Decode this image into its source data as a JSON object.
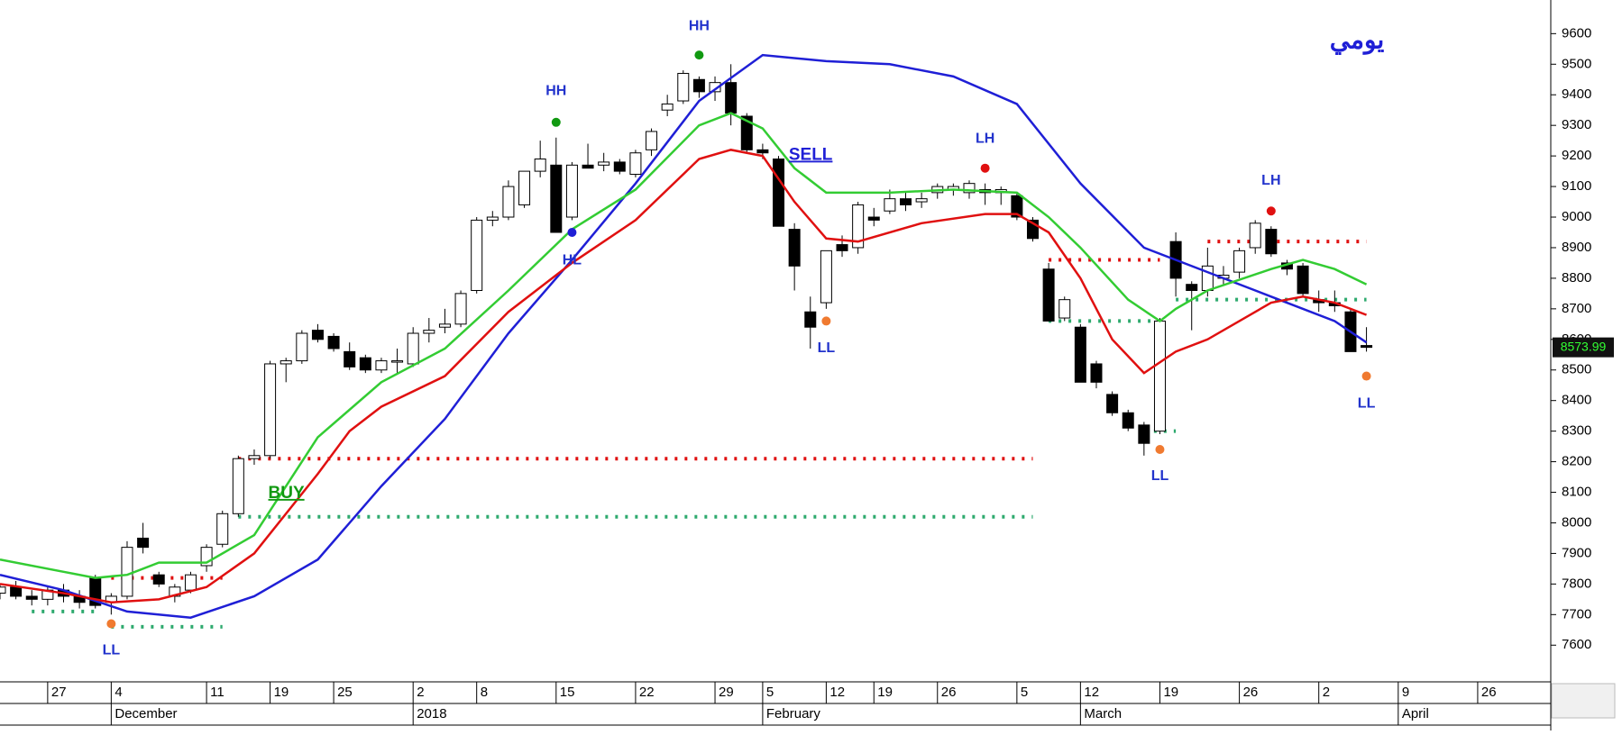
{
  "chart_data": {
    "type": "candlestick",
    "title": "يومي",
    "xlim": [
      0,
      97.6
    ],
    "ylim": [
      7480,
      9710
    ],
    "yticks": [
      7600,
      7700,
      7800,
      7900,
      8000,
      8100,
      8200,
      8300,
      8400,
      8500,
      8600,
      8700,
      8800,
      8900,
      9000,
      9100,
      9200,
      9300,
      9400,
      9500,
      9600
    ],
    "xticks": [
      {
        "value": 3,
        "label": "27"
      },
      {
        "value": 7,
        "label": "4"
      },
      {
        "value": 13,
        "label": "11"
      },
      {
        "value": 17,
        "label": "19"
      },
      {
        "value": 21,
        "label": "25"
      },
      {
        "value": 26,
        "label": "2"
      },
      {
        "value": 30,
        "label": "8"
      },
      {
        "value": 35,
        "label": "15"
      },
      {
        "value": 40,
        "label": "22"
      },
      {
        "value": 45,
        "label": "29"
      },
      {
        "value": 48,
        "label": "5"
      },
      {
        "value": 52,
        "label": "12"
      },
      {
        "value": 55,
        "label": "19"
      },
      {
        "value": 59,
        "label": "26"
      },
      {
        "value": 64,
        "label": "5"
      },
      {
        "value": 68,
        "label": "12"
      },
      {
        "value": 73,
        "label": "19"
      },
      {
        "value": 78,
        "label": "26"
      },
      {
        "value": 83,
        "label": "2"
      },
      {
        "value": 88,
        "label": "9"
      },
      {
        "value": 93,
        "label": "26"
      }
    ],
    "months": [
      {
        "value": 7,
        "label": "December"
      },
      {
        "value": 26,
        "label": "2018"
      },
      {
        "value": 48,
        "label": "February"
      },
      {
        "value": 68,
        "label": "March"
      },
      {
        "value": 88,
        "label": "April"
      }
    ],
    "candles": [
      [
        7770,
        7800,
        7750,
        7790
      ],
      [
        7790,
        7810,
        7750,
        7760
      ],
      [
        7760,
        7780,
        7730,
        7750
      ],
      [
        7750,
        7790,
        7730,
        7780
      ],
      [
        7780,
        7800,
        7740,
        7760
      ],
      [
        7760,
        7780,
        7720,
        7740
      ],
      [
        7820,
        7830,
        7720,
        7730
      ],
      [
        7740,
        7770,
        7700,
        7760
      ],
      [
        7760,
        7940,
        7750,
        7920
      ],
      [
        7950,
        8000,
        7900,
        7920
      ],
      [
        7830,
        7840,
        7790,
        7800
      ],
      [
        7760,
        7800,
        7740,
        7790
      ],
      [
        7780,
        7840,
        7770,
        7830
      ],
      [
        7860,
        7930,
        7840,
        7920
      ],
      [
        7930,
        8040,
        7920,
        8030
      ],
      [
        8030,
        8220,
        8020,
        8210
      ],
      [
        8210,
        8240,
        8190,
        8220
      ],
      [
        8220,
        8530,
        8210,
        8520
      ],
      [
        8520,
        8540,
        8460,
        8530
      ],
      [
        8530,
        8630,
        8520,
        8620
      ],
      [
        8630,
        8650,
        8590,
        8600
      ],
      [
        8610,
        8620,
        8560,
        8570
      ],
      [
        8560,
        8590,
        8500,
        8510
      ],
      [
        8540,
        8550,
        8490,
        8500
      ],
      [
        8500,
        8540,
        8490,
        8530
      ],
      [
        8530,
        8570,
        8490,
        8530
      ],
      [
        8520,
        8640,
        8510,
        8620
      ],
      [
        8620,
        8670,
        8590,
        8630
      ],
      [
        8640,
        8700,
        8620,
        8650
      ],
      [
        8650,
        8760,
        8640,
        8750
      ],
      [
        8760,
        9000,
        8750,
        8990
      ],
      [
        8990,
        9020,
        8970,
        9000
      ],
      [
        9000,
        9120,
        8990,
        9100
      ],
      [
        9040,
        9150,
        9030,
        9150
      ],
      [
        9150,
        9250,
        9130,
        9190
      ],
      [
        9170,
        9260,
        8950,
        8950
      ],
      [
        9000,
        9180,
        8990,
        9170
      ],
      [
        9170,
        9240,
        9160,
        9160
      ],
      [
        9170,
        9210,
        9150,
        9180
      ],
      [
        9180,
        9190,
        9140,
        9150
      ],
      [
        9140,
        9220,
        9130,
        9210
      ],
      [
        9220,
        9290,
        9200,
        9280
      ],
      [
        9350,
        9400,
        9330,
        9370
      ],
      [
        9380,
        9480,
        9370,
        9470
      ],
      [
        9450,
        9460,
        9390,
        9410
      ],
      [
        9410,
        9460,
        9380,
        9440
      ],
      [
        9440,
        9500,
        9300,
        9340
      ],
      [
        9330,
        9340,
        9210,
        9220
      ],
      [
        9220,
        9240,
        9190,
        9210
      ],
      [
        9190,
        9200,
        8970,
        8970
      ],
      [
        8960,
        8980,
        8760,
        8840
      ],
      [
        8690,
        8740,
        8570,
        8640
      ],
      [
        8720,
        8890,
        8700,
        8890
      ],
      [
        8910,
        8940,
        8870,
        8890
      ],
      [
        8900,
        9050,
        8880,
        9040
      ],
      [
        9000,
        9030,
        8970,
        8990
      ],
      [
        9020,
        9090,
        9010,
        9060
      ],
      [
        9060,
        9080,
        9020,
        9040
      ],
      [
        9050,
        9080,
        9030,
        9060
      ],
      [
        9080,
        9110,
        9060,
        9100
      ],
      [
        9090,
        9110,
        9070,
        9100
      ],
      [
        9080,
        9120,
        9060,
        9110
      ],
      [
        9090,
        9110,
        9040,
        9080
      ],
      [
        9080,
        9100,
        9040,
        9090
      ],
      [
        9070,
        9080,
        8990,
        9000
      ],
      [
        8990,
        9000,
        8920,
        8930
      ],
      [
        8830,
        8850,
        8660,
        8660
      ],
      [
        8670,
        8740,
        8660,
        8730
      ],
      [
        8640,
        8650,
        8460,
        8460
      ],
      [
        8520,
        8530,
        8440,
        8460
      ],
      [
        8420,
        8430,
        8350,
        8360
      ],
      [
        8360,
        8370,
        8300,
        8310
      ],
      [
        8320,
        8330,
        8220,
        8260
      ],
      [
        8300,
        8670,
        8290,
        8660
      ],
      [
        8920,
        8950,
        8740,
        8800
      ],
      [
        8780,
        8790,
        8630,
        8760
      ],
      [
        8760,
        8900,
        8740,
        8840
      ],
      [
        8800,
        8840,
        8780,
        8810
      ],
      [
        8820,
        8900,
        8800,
        8890
      ],
      [
        8900,
        8990,
        8880,
        8980
      ],
      [
        8960,
        8970,
        8870,
        8880
      ],
      [
        8850,
        8860,
        8810,
        8830
      ],
      [
        8840,
        8850,
        8740,
        8750
      ],
      [
        8730,
        8760,
        8690,
        8720
      ],
      [
        8720,
        8760,
        8690,
        8710
      ],
      [
        8690,
        8700,
        8560,
        8560
      ],
      [
        8580,
        8640,
        8560,
        8573.99
      ]
    ],
    "last_price": 8573.99,
    "series": [
      {
        "color": "#1f1fd6",
        "x": [
          0,
          4,
          8,
          12,
          16,
          20,
          24,
          28,
          32,
          36,
          40,
          44,
          48,
          52,
          56,
          60,
          64,
          68,
          72,
          76,
          80,
          84,
          86
        ],
        "values": [
          7830,
          7780,
          7710,
          7690,
          7760,
          7880,
          8120,
          8340,
          8620,
          8860,
          9110,
          9380,
          9530,
          9510,
          9500,
          9460,
          9370,
          9110,
          8900,
          8820,
          8740,
          8660,
          8590
        ]
      },
      {
        "color": "#33cc33",
        "x": [
          0,
          4,
          6,
          8,
          10,
          13,
          16,
          20,
          24,
          28,
          32,
          36,
          40,
          44,
          46,
          48,
          50,
          52,
          56,
          60,
          64,
          66,
          68,
          71,
          73,
          74,
          76,
          80,
          82,
          84,
          86
        ],
        "values": [
          7880,
          7840,
          7820,
          7830,
          7870,
          7870,
          7960,
          8280,
          8460,
          8570,
          8760,
          8960,
          9090,
          9300,
          9340,
          9290,
          9160,
          9080,
          9080,
          9090,
          9080,
          9000,
          8900,
          8730,
          8660,
          8700,
          8760,
          8830,
          8860,
          8830,
          8780
        ]
      },
      {
        "color": "#e01010",
        "x": [
          0,
          4,
          7,
          10,
          13,
          16,
          20,
          22,
          24,
          28,
          32,
          36,
          40,
          44,
          46,
          48,
          50,
          52,
          54,
          58,
          62,
          64,
          66,
          68,
          70,
          72,
          74,
          76,
          80,
          82,
          84,
          86
        ],
        "values": [
          7800,
          7770,
          7740,
          7750,
          7790,
          7900,
          8160,
          8300,
          8380,
          8480,
          8690,
          8850,
          8990,
          9190,
          9220,
          9200,
          9050,
          8930,
          8920,
          8980,
          9010,
          9010,
          8950,
          8800,
          8600,
          8490,
          8560,
          8600,
          8720,
          8740,
          8720,
          8680
        ]
      }
    ],
    "levels": [
      {
        "color": "#e01010",
        "value": 8210,
        "from": 15,
        "to": 65
      },
      {
        "color": "#2eaa6e",
        "value": 8020,
        "from": 15,
        "to": 65
      },
      {
        "color": "#e01010",
        "value": 7820,
        "from": 7,
        "to": 14
      },
      {
        "color": "#2eaa6e",
        "value": 7660,
        "from": 7,
        "to": 14
      },
      {
        "color": "#2eaa6e",
        "value": 7710,
        "from": 2,
        "to": 6
      },
      {
        "color": "#e01010",
        "value": 8860,
        "from": 66,
        "to": 73
      },
      {
        "color": "#2eaa6e",
        "value": 8660,
        "from": 66,
        "to": 73
      },
      {
        "color": "#e01010",
        "value": 8920,
        "from": 76,
        "to": 86
      },
      {
        "color": "#2eaa6e",
        "value": 8730,
        "from": 74,
        "to": 86
      },
      {
        "color": "#2eaa6e",
        "value": 8300,
        "from": 72,
        "to": 74
      }
    ],
    "dots": [
      {
        "x": 35,
        "value": 9310,
        "color": "#119911"
      },
      {
        "x": 44,
        "value": 9530,
        "color": "#119911"
      },
      {
        "x": 36,
        "value": 8950,
        "color": "#1f1fd6"
      },
      {
        "x": 62,
        "value": 9160,
        "color": "#e01010"
      },
      {
        "x": 80,
        "value": 9020,
        "color": "#e01010"
      },
      {
        "x": 7,
        "value": 7670,
        "color": "#f07a30"
      },
      {
        "x": 52,
        "value": 8660,
        "color": "#f07a30"
      },
      {
        "x": 73,
        "value": 8240,
        "color": "#f07a30"
      },
      {
        "x": 86,
        "value": 8480,
        "color": "#f07a30"
      }
    ],
    "annotations": [
      {
        "text": "HH",
        "x": 35,
        "value": 9411,
        "color": "#2233cc"
      },
      {
        "text": "HH",
        "x": 44,
        "value": 9624,
        "color": "#2233cc"
      },
      {
        "text": "HL",
        "x": 36,
        "value": 8858,
        "color": "#2233cc"
      },
      {
        "text": "LH",
        "x": 62,
        "value": 9256,
        "color": "#2233cc"
      },
      {
        "text": "LH",
        "x": 80,
        "value": 9118,
        "color": "#2233cc"
      },
      {
        "text": "LL",
        "x": 7,
        "value": 7583,
        "color": "#2233cc"
      },
      {
        "text": "LL",
        "x": 52,
        "value": 8571,
        "color": "#2233cc"
      },
      {
        "text": "LL",
        "x": 73,
        "value": 8153,
        "color": "#2233cc"
      },
      {
        "text": "LL",
        "x": 86,
        "value": 8389,
        "color": "#2233cc"
      },
      {
        "text": "BUY",
        "x": 17,
        "value": 8096,
        "color": "#119911"
      },
      {
        "text": "SELL",
        "x": 50,
        "value": 9202,
        "color": "#1f1fd6"
      }
    ]
  }
}
